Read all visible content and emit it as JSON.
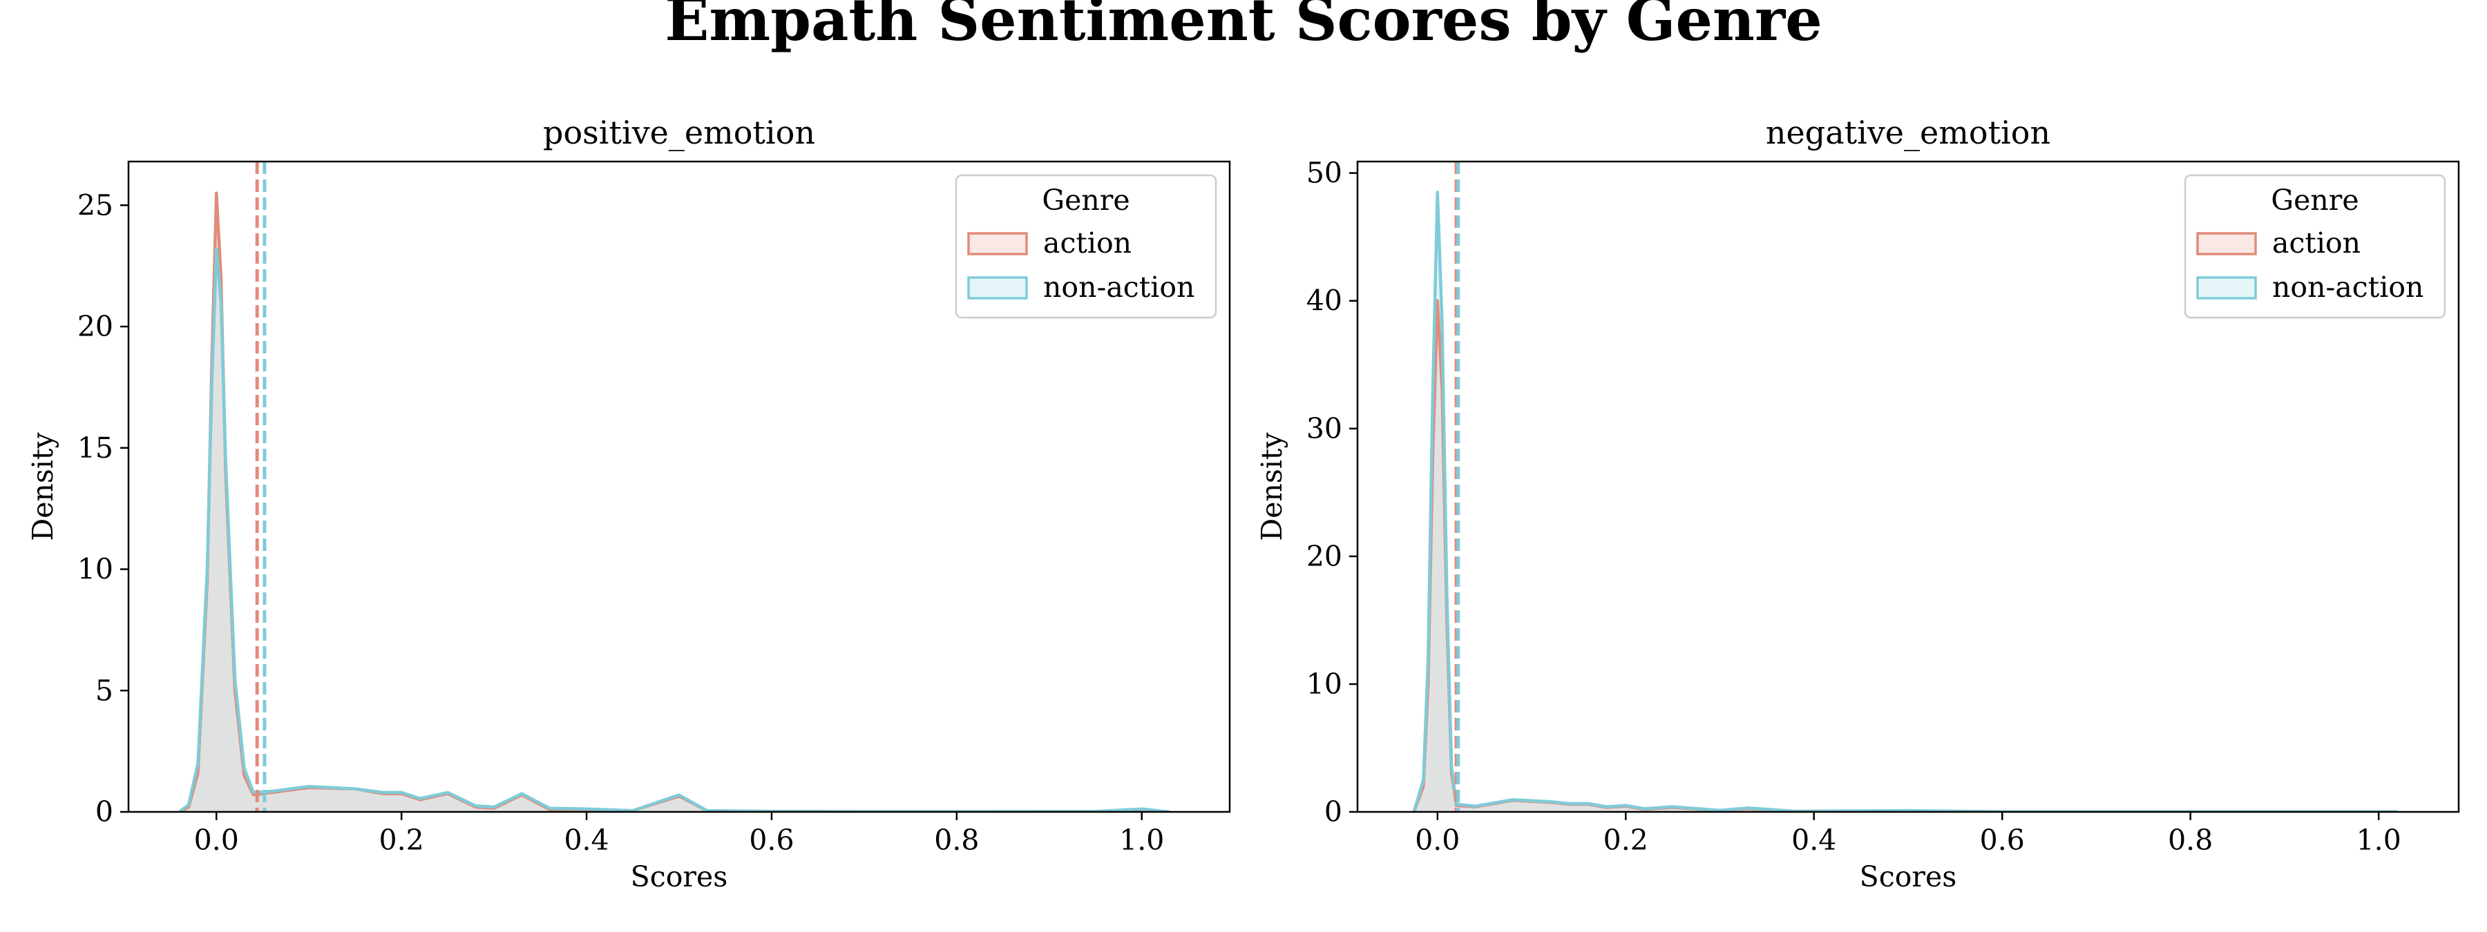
{
  "figure": {
    "suptitle": "Empath Sentiment Scores by Genre"
  },
  "chart_data": [
    {
      "type": "area",
      "title": "positive_emotion",
      "xlabel": "Scores",
      "ylabel": "Density",
      "xlim": [
        -0.095,
        1.095
      ],
      "ylim": [
        0,
        26.8
      ],
      "xticks": [
        0.0,
        0.2,
        0.4,
        0.6,
        0.8,
        1.0
      ],
      "xtick_labels": [
        "0.0",
        "0.2",
        "0.4",
        "0.6",
        "0.8",
        "1.0"
      ],
      "yticks": [
        0,
        5,
        10,
        15,
        20,
        25
      ],
      "ytick_labels": [
        "0",
        "5",
        "10",
        "15",
        "20",
        "25"
      ],
      "grid": false,
      "legend": {
        "title": "Genre",
        "placement": "top-right",
        "entries": [
          "action",
          "non-action"
        ]
      },
      "series": [
        {
          "name": "action",
          "color": "#E08C7B",
          "mean_line": 0.044,
          "points": [
            [
              -0.04,
              0
            ],
            [
              -0.03,
              0.2
            ],
            [
              -0.02,
              1.6
            ],
            [
              -0.01,
              9.5
            ],
            [
              -0.005,
              18.5
            ],
            [
              0.0,
              25.5
            ],
            [
              0.005,
              22.0
            ],
            [
              0.01,
              14.0
            ],
            [
              0.02,
              5.0
            ],
            [
              0.03,
              1.5
            ],
            [
              0.04,
              0.7
            ],
            [
              0.06,
              0.8
            ],
            [
              0.1,
              1.0
            ],
            [
              0.15,
              0.95
            ],
            [
              0.18,
              0.75
            ],
            [
              0.2,
              0.75
            ],
            [
              0.22,
              0.5
            ],
            [
              0.25,
              0.75
            ],
            [
              0.28,
              0.2
            ],
            [
              0.3,
              0.15
            ],
            [
              0.33,
              0.7
            ],
            [
              0.36,
              0.1
            ],
            [
              0.4,
              0.1
            ],
            [
              0.45,
              0.05
            ],
            [
              0.5,
              0.65
            ],
            [
              0.53,
              0.05
            ],
            [
              0.6,
              0.02
            ],
            [
              0.7,
              0.01
            ],
            [
              0.8,
              0.01
            ],
            [
              0.95,
              0.01
            ],
            [
              1.0,
              0.1
            ],
            [
              1.03,
              0
            ]
          ]
        },
        {
          "name": "non-action",
          "color": "#7FCBD8",
          "mean_line": 0.052,
          "points": [
            [
              -0.04,
              0
            ],
            [
              -0.03,
              0.3
            ],
            [
              -0.02,
              2.0
            ],
            [
              -0.01,
              10.0
            ],
            [
              -0.005,
              17.5
            ],
            [
              0.0,
              23.2
            ],
            [
              0.005,
              21.0
            ],
            [
              0.01,
              14.5
            ],
            [
              0.02,
              5.5
            ],
            [
              0.03,
              1.8
            ],
            [
              0.04,
              0.8
            ],
            [
              0.06,
              0.85
            ],
            [
              0.1,
              1.05
            ],
            [
              0.15,
              0.95
            ],
            [
              0.18,
              0.8
            ],
            [
              0.2,
              0.8
            ],
            [
              0.22,
              0.55
            ],
            [
              0.25,
              0.8
            ],
            [
              0.28,
              0.25
            ],
            [
              0.3,
              0.2
            ],
            [
              0.33,
              0.75
            ],
            [
              0.36,
              0.15
            ],
            [
              0.4,
              0.12
            ],
            [
              0.45,
              0.05
            ],
            [
              0.5,
              0.7
            ],
            [
              0.53,
              0.05
            ],
            [
              0.6,
              0.02
            ],
            [
              0.7,
              0.01
            ],
            [
              0.8,
              0.01
            ],
            [
              0.95,
              0.02
            ],
            [
              1.0,
              0.12
            ],
            [
              1.03,
              0
            ]
          ]
        }
      ]
    },
    {
      "type": "area",
      "title": "negative_emotion",
      "xlabel": "Scores",
      "ylabel": "Density",
      "xlim": [
        -0.085,
        1.085
      ],
      "ylim": [
        0,
        50.9
      ],
      "xticks": [
        0.0,
        0.2,
        0.4,
        0.6,
        0.8,
        1.0
      ],
      "xtick_labels": [
        "0.0",
        "0.2",
        "0.4",
        "0.6",
        "0.8",
        "1.0"
      ],
      "yticks": [
        0,
        10,
        20,
        30,
        40,
        50
      ],
      "ytick_labels": [
        "0",
        "10",
        "20",
        "30",
        "40",
        "50"
      ],
      "grid": false,
      "legend": {
        "title": "Genre",
        "placement": "top-right",
        "entries": [
          "action",
          "non-action"
        ]
      },
      "series": [
        {
          "name": "action",
          "color": "#E08C7B",
          "mean_line": 0.02,
          "points": [
            [
              -0.025,
              0
            ],
            [
              -0.015,
              2.0
            ],
            [
              -0.01,
              10.0
            ],
            [
              -0.005,
              28.0
            ],
            [
              0.0,
              40.0
            ],
            [
              0.005,
              33.0
            ],
            [
              0.01,
              15.0
            ],
            [
              0.015,
              3.0
            ],
            [
              0.02,
              0.5
            ],
            [
              0.04,
              0.4
            ],
            [
              0.08,
              0.9
            ],
            [
              0.12,
              0.75
            ],
            [
              0.14,
              0.6
            ],
            [
              0.16,
              0.6
            ],
            [
              0.18,
              0.35
            ],
            [
              0.2,
              0.45
            ],
            [
              0.22,
              0.2
            ],
            [
              0.25,
              0.35
            ],
            [
              0.3,
              0.1
            ],
            [
              0.33,
              0.25
            ],
            [
              0.38,
              0.05
            ],
            [
              0.5,
              0.08
            ],
            [
              0.6,
              0.01
            ],
            [
              0.8,
              0.01
            ],
            [
              1.0,
              0.01
            ],
            [
              1.02,
              0
            ]
          ]
        },
        {
          "name": "non-action",
          "color": "#7FCBD8",
          "mean_line": 0.022,
          "points": [
            [
              -0.025,
              0
            ],
            [
              -0.015,
              2.5
            ],
            [
              -0.01,
              12.0
            ],
            [
              -0.005,
              33.0
            ],
            [
              0.0,
              48.5
            ],
            [
              0.005,
              38.0
            ],
            [
              0.01,
              17.0
            ],
            [
              0.015,
              3.5
            ],
            [
              0.02,
              0.6
            ],
            [
              0.04,
              0.45
            ],
            [
              0.08,
              0.95
            ],
            [
              0.12,
              0.8
            ],
            [
              0.14,
              0.65
            ],
            [
              0.16,
              0.65
            ],
            [
              0.18,
              0.4
            ],
            [
              0.2,
              0.5
            ],
            [
              0.22,
              0.25
            ],
            [
              0.25,
              0.4
            ],
            [
              0.3,
              0.12
            ],
            [
              0.33,
              0.3
            ],
            [
              0.38,
              0.05
            ],
            [
              0.5,
              0.1
            ],
            [
              0.6,
              0.01
            ],
            [
              0.8,
              0.01
            ],
            [
              1.0,
              0.01
            ],
            [
              1.02,
              0
            ]
          ]
        }
      ]
    }
  ]
}
